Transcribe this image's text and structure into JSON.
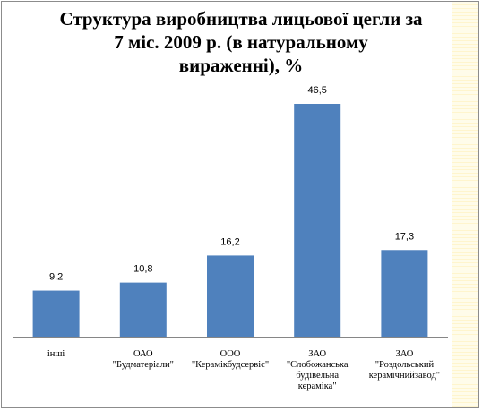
{
  "chart_data": {
    "type": "bar",
    "title": "Структура виробництва лицьової цегли за\n7 міс. 2009 р. (в натуральному\nвираженні), %",
    "categories": [
      [
        "інші"
      ],
      [
        "ОАО",
        "\"Будматеріали\""
      ],
      [
        "ООО",
        "\"Керамікбудсервіс\""
      ],
      [
        "ЗАО",
        "\"Слобожанська",
        "будівельна",
        "кераміка\""
      ],
      [
        "ЗАО",
        "\"Роздольський",
        "керамічнийзавод\""
      ]
    ],
    "values": [
      9.2,
      10.8,
      16.2,
      46.5,
      17.3
    ],
    "value_labels": [
      "9,2",
      "10,8",
      "16,2",
      "46,5",
      "17,3"
    ],
    "ylim": [
      0,
      46.5
    ],
    "grid": false,
    "legend": "none",
    "bar_color": "#4f81bd"
  }
}
